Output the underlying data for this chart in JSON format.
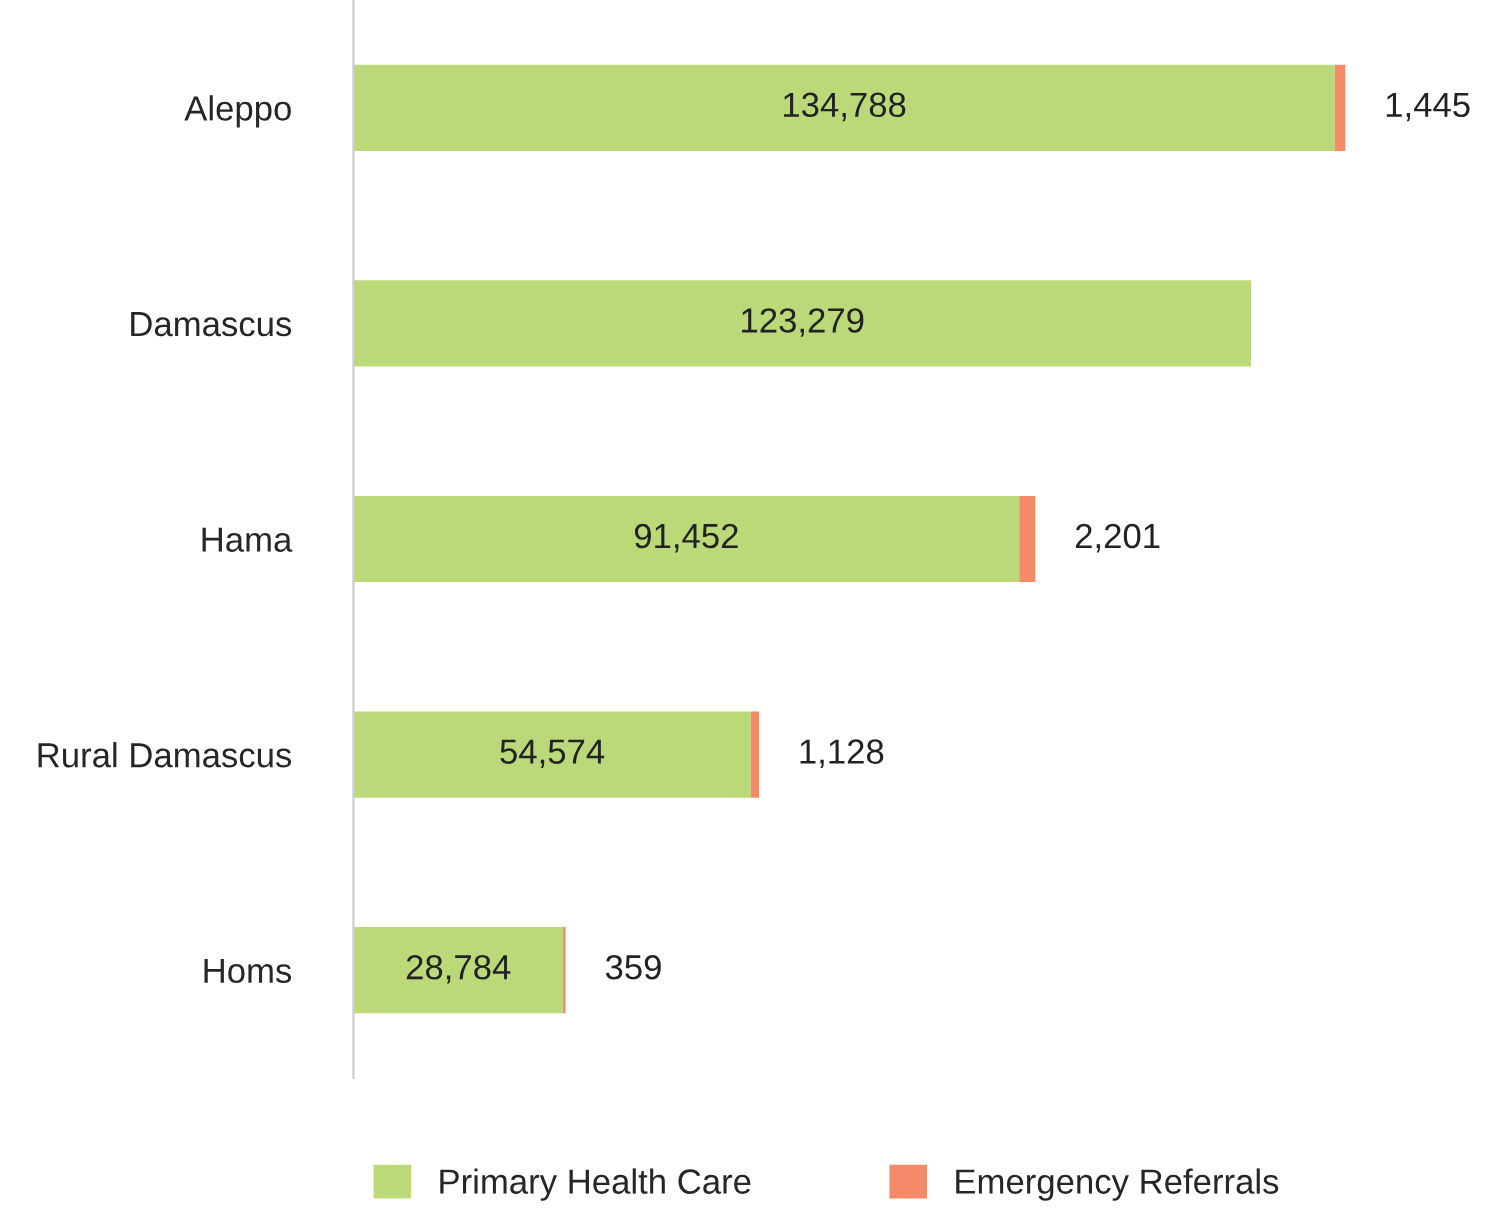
{
  "chart_data": {
    "type": "bar",
    "orientation": "horizontal",
    "stacked": true,
    "legend": "bottom",
    "grid": false,
    "categories": [
      "Aleppo",
      "Damascus",
      "Hama",
      "Rural Damascus",
      "Homs"
    ],
    "series": [
      {
        "name": "Primary Health Care",
        "color": "#bcd97a",
        "values": [
          134788,
          123279,
          91452,
          54574,
          28784
        ],
        "value_labels": [
          "134,788",
          "123,279",
          "91,452",
          "54,574",
          "28,784"
        ]
      },
      {
        "name": "Emergency Referrals",
        "color": "#f58a6a",
        "values": [
          1445,
          null,
          2201,
          1128,
          359
        ],
        "value_labels": [
          "1,445",
          null,
          "2,201",
          "1,128",
          "359"
        ]
      }
    ]
  }
}
